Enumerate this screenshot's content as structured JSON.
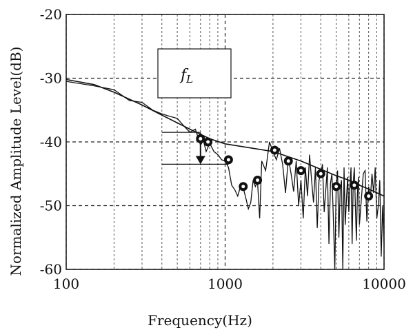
{
  "chart_data": {
    "type": "line",
    "xlabel": "Frequency(Hz)",
    "ylabel": "Normalized Amplitude Level(dB)",
    "xscale": "log",
    "xlim": [
      100,
      10000
    ],
    "ylim": [
      -60,
      -20
    ],
    "x_ticks": [
      {
        "value": 100,
        "label": "100"
      },
      {
        "value": 1000,
        "label": "1000"
      },
      {
        "value": 10000,
        "label": "10000"
      }
    ],
    "y_ticks": [
      {
        "value": -20,
        "label": "-20"
      },
      {
        "value": -30,
        "label": "-30"
      },
      {
        "value": -40,
        "label": "-40"
      },
      {
        "value": -50,
        "label": "-50"
      },
      {
        "value": -60,
        "label": "-60"
      }
    ],
    "grid": true,
    "legend": {
      "label": "f",
      "subscript": "L",
      "placement": "top-center"
    },
    "series": [
      {
        "kind": "envelope",
        "x": [
          100,
          150,
          200,
          300,
          400,
          500,
          600,
          700,
          800,
          1000,
          1500,
          2000,
          3000,
          4000,
          5000,
          6000,
          7000,
          8000,
          10000
        ],
        "values": [
          -30.2,
          -31.0,
          -32.2,
          -34.2,
          -35.8,
          -37.0,
          -38.0,
          -38.8,
          -39.5,
          -40.3,
          -41.0,
          -41.5,
          -43.0,
          -44.3,
          -45.3,
          -46.0,
          -46.8,
          -47.4,
          -48.5
        ]
      },
      {
        "kind": "spectrum",
        "x": [
          100,
          150,
          200,
          250,
          300,
          350,
          400,
          450,
          500,
          550,
          600,
          650,
          700,
          730,
          760,
          800,
          850,
          900,
          950,
          1000,
          1050,
          1100,
          1150,
          1200,
          1250,
          1300,
          1350,
          1400,
          1450,
          1500,
          1550,
          1600,
          1650,
          1700,
          1800,
          1900,
          2000,
          2100,
          2200,
          2300,
          2400,
          2500,
          2600,
          2700,
          2800,
          2900,
          3000,
          3100,
          3200,
          3300,
          3400,
          3500,
          3600,
          3700,
          3800,
          3900,
          4000,
          4100,
          4200,
          4300,
          4400,
          4500,
          4600,
          4700,
          4800,
          4900,
          5000,
          5100,
          5200,
          5300,
          5400,
          5500,
          5600,
          5700,
          5800,
          5900,
          6000,
          6100,
          6200,
          6300,
          6400,
          6500,
          6600,
          6700,
          6800,
          6900,
          7000,
          7200,
          7400,
          7600,
          7800,
          8000,
          8200,
          8400,
          8600,
          8800,
          9000,
          9200,
          9400,
          9600,
          9800,
          10000
        ],
        "values": [
          -30.5,
          -31.2,
          -31.8,
          -33.5,
          -33.8,
          -35.0,
          -35.6,
          -36.0,
          -36.3,
          -37.5,
          -38.5,
          -38.0,
          -40.5,
          -39.8,
          -41.5,
          -40.2,
          -41.5,
          -42.0,
          -42.8,
          -43.0,
          -44.0,
          -46.8,
          -47.5,
          -48.5,
          -47.0,
          -47.2,
          -48.8,
          -50.5,
          -49.5,
          -46.0,
          -47.0,
          -46.2,
          -52.0,
          -43.0,
          -44.5,
          -40.0,
          -41.5,
          -42.8,
          -41.0,
          -43.5,
          -48.0,
          -42.5,
          -45.0,
          -47.8,
          -43.0,
          -50.0,
          -46.0,
          -52.0,
          -44.0,
          -48.5,
          -42.0,
          -46.0,
          -49.5,
          -44.0,
          -53.5,
          -46.0,
          -45.0,
          -43.5,
          -51.0,
          -47.5,
          -44.0,
          -56.0,
          -46.5,
          -45.0,
          -52.0,
          -60.0,
          -47.0,
          -44.5,
          -55.0,
          -47.5,
          -46.0,
          -60.0,
          -44.0,
          -53.0,
          -49.0,
          -45.5,
          -51.0,
          -47.0,
          -44.0,
          -56.0,
          -46.5,
          -44.0,
          -50.0,
          -55.5,
          -48.0,
          -45.5,
          -53.0,
          -49.0,
          -45.0,
          -44.5,
          -52.5,
          -47.0,
          -49.0,
          -45.0,
          -48.0,
          -44.0,
          -52.0,
          -50.0,
          -46.0,
          -58.0,
          -50.0,
          -56.0
        ]
      },
      {
        "kind": "markers",
        "x": [
          700,
          780,
          1050,
          1300,
          1600,
          2050,
          2500,
          3000,
          4000,
          5000,
          6500,
          8000
        ],
        "values": [
          -39.5,
          -40.0,
          -42.8,
          -47.0,
          -46.0,
          -41.3,
          -43.0,
          -44.5,
          -45.0,
          -47.0,
          -46.8,
          -48.5
        ]
      }
    ],
    "annotations": [
      {
        "kind": "reference-line",
        "x_start": 400,
        "x_end": 700,
        "y": -38.5
      },
      {
        "kind": "reference-line",
        "x_start": 400,
        "x_end": 1050,
        "y": -43.5
      },
      {
        "kind": "double-arrow",
        "x": 700,
        "y_from": -38.5,
        "y_to": -43.5
      }
    ]
  }
}
